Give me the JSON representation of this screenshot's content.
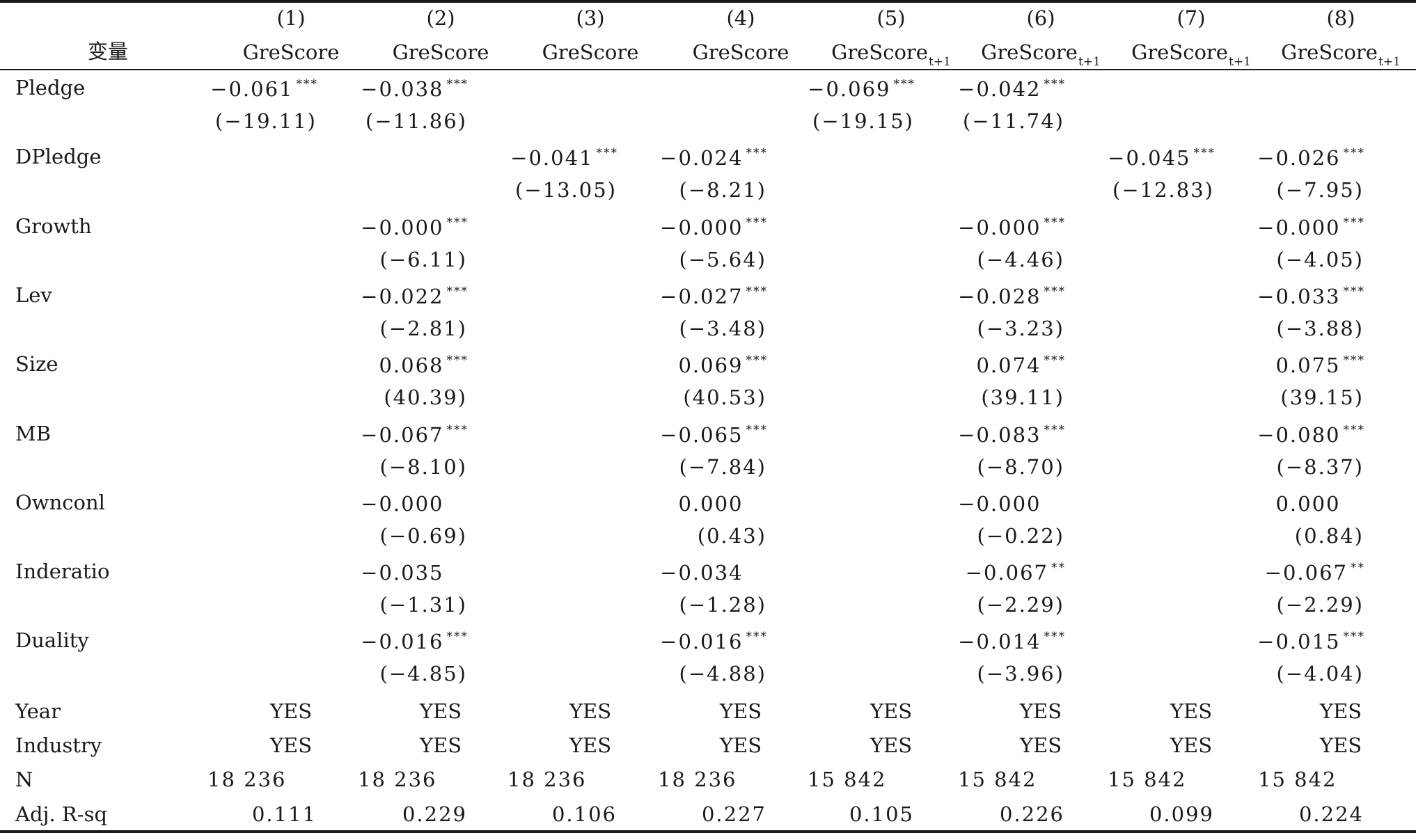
{
  "header": {
    "var_label": "变量",
    "columns": [
      {
        "num": "(1)",
        "dep": "GreScore",
        "sub": ""
      },
      {
        "num": "(2)",
        "dep": "GreScore",
        "sub": ""
      },
      {
        "num": "(3)",
        "dep": "GreScore",
        "sub": ""
      },
      {
        "num": "(4)",
        "dep": "GreScore",
        "sub": ""
      },
      {
        "num": "(5)",
        "dep": "GreScore",
        "sub": "t+1"
      },
      {
        "num": "(6)",
        "dep": "GreScore",
        "sub": "t+1"
      },
      {
        "num": "(7)",
        "dep": "GreScore",
        "sub": "t+1"
      },
      {
        "num": "(8)",
        "dep": "GreScore",
        "sub": "t+1"
      }
    ]
  },
  "rows": [
    {
      "name": "Pledge",
      "coef": [
        {
          "v": "-0.061",
          "s": "***"
        },
        {
          "v": "-0.038",
          "s": "***"
        },
        null,
        null,
        {
          "v": "-0.069",
          "s": "***"
        },
        {
          "v": "-0.042",
          "s": "***"
        },
        null,
        null
      ],
      "t": [
        "(-19.11)",
        "(-11.86)",
        null,
        null,
        "(-19.15)",
        "(-11.74)",
        null,
        null
      ]
    },
    {
      "name": "DPledge",
      "coef": [
        null,
        null,
        {
          "v": "-0.041",
          "s": "***"
        },
        {
          "v": "-0.024",
          "s": "***"
        },
        null,
        null,
        {
          "v": "-0.045",
          "s": "***"
        },
        {
          "v": "-0.026",
          "s": "***"
        }
      ],
      "t": [
        null,
        null,
        "(-13.05)",
        "(-8.21)",
        null,
        null,
        "(-12.83)",
        "(-7.95)"
      ]
    },
    {
      "name": "Growth",
      "coef": [
        null,
        {
          "v": "-0.000",
          "s": "***"
        },
        null,
        {
          "v": "-0.000",
          "s": "***"
        },
        null,
        {
          "v": "-0.000",
          "s": "***"
        },
        null,
        {
          "v": "-0.000",
          "s": "***"
        }
      ],
      "t": [
        null,
        "(-6.11)",
        null,
        "(-5.64)",
        null,
        "(-4.46)",
        null,
        "(-4.05)"
      ]
    },
    {
      "name": "Lev",
      "coef": [
        null,
        {
          "v": "-0.022",
          "s": "***"
        },
        null,
        {
          "v": "-0.027",
          "s": "***"
        },
        null,
        {
          "v": "-0.028",
          "s": "***"
        },
        null,
        {
          "v": "-0.033",
          "s": "***"
        }
      ],
      "t": [
        null,
        "(-2.81)",
        null,
        "(-3.48)",
        null,
        "(-3.23)",
        null,
        "(-3.88)"
      ]
    },
    {
      "name": "Size",
      "coef": [
        null,
        {
          "v": "0.068",
          "s": "***"
        },
        null,
        {
          "v": "0.069",
          "s": "***"
        },
        null,
        {
          "v": "0.074",
          "s": "***"
        },
        null,
        {
          "v": "0.075",
          "s": "***"
        }
      ],
      "t": [
        null,
        "(40.39)",
        null,
        "(40.53)",
        null,
        "(39.11)",
        null,
        "(39.15)"
      ]
    },
    {
      "name": "MB",
      "coef": [
        null,
        {
          "v": "-0.067",
          "s": "***"
        },
        null,
        {
          "v": "-0.065",
          "s": "***"
        },
        null,
        {
          "v": "-0.083",
          "s": "***"
        },
        null,
        {
          "v": "-0.080",
          "s": "***"
        }
      ],
      "t": [
        null,
        "(-8.10)",
        null,
        "(-7.84)",
        null,
        "(-8.70)",
        null,
        "(-8.37)"
      ]
    },
    {
      "name": "Ownconl",
      "coef": [
        null,
        {
          "v": "-0.000",
          "s": ""
        },
        null,
        {
          "v": "0.000",
          "s": ""
        },
        null,
        {
          "v": "-0.000",
          "s": ""
        },
        null,
        {
          "v": "0.000",
          "s": ""
        }
      ],
      "t": [
        null,
        "(-0.69)",
        null,
        "(0.43)",
        null,
        "(-0.22)",
        null,
        "(0.84)"
      ]
    },
    {
      "name": "Inderatio",
      "coef": [
        null,
        {
          "v": "-0.035",
          "s": ""
        },
        null,
        {
          "v": "-0.034",
          "s": ""
        },
        null,
        {
          "v": "-0.067",
          "s": "**"
        },
        null,
        {
          "v": "-0.067",
          "s": "**"
        }
      ],
      "t": [
        null,
        "(-1.31)",
        null,
        "(-1.28)",
        null,
        "(-2.29)",
        null,
        "(-2.29)"
      ]
    },
    {
      "name": "Duality",
      "coef": [
        null,
        {
          "v": "-0.016",
          "s": "***"
        },
        null,
        {
          "v": "-0.016",
          "s": "***"
        },
        null,
        {
          "v": "-0.014",
          "s": "***"
        },
        null,
        {
          "v": "-0.015",
          "s": "***"
        }
      ],
      "t": [
        null,
        "(-4.85)",
        null,
        "(-4.88)",
        null,
        "(-3.96)",
        null,
        "(-4.04)"
      ]
    }
  ],
  "controls": [
    {
      "name": "Year",
      "values": [
        "YES",
        "YES",
        "YES",
        "YES",
        "YES",
        "YES",
        "YES",
        "YES"
      ]
    },
    {
      "name": "Industry",
      "values": [
        "YES",
        "YES",
        "YES",
        "YES",
        "YES",
        "YES",
        "YES",
        "YES"
      ]
    }
  ],
  "n_row": {
    "name": "N",
    "values": [
      "18 236",
      "18 236",
      "18 236",
      "18 236",
      "15 842",
      "15 842",
      "15 842",
      "15 842"
    ]
  },
  "r2_row": {
    "name": "Adj. R-sq",
    "values": [
      "0.111",
      "0.229",
      "0.106",
      "0.227",
      "0.105",
      "0.226",
      "0.099",
      "0.224"
    ]
  }
}
